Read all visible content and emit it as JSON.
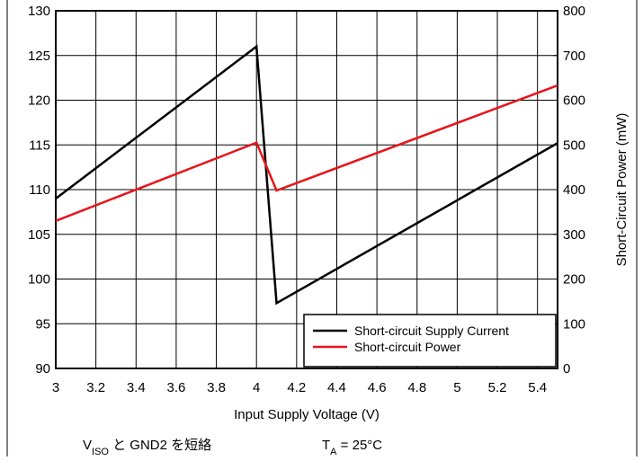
{
  "chart_data": {
    "type": "line",
    "xlabel": "Input Supply Voltage (V)",
    "y2label": "Short-Circuit Power (mW)",
    "x": [
      3,
      4,
      4.1,
      5.5
    ],
    "series": [
      {
        "name": "Short-circuit Supply Current",
        "color": "#000000",
        "values": [
          109,
          126,
          97.3,
          115.2
        ]
      },
      {
        "name": "Short-circuit Power",
        "color": "#e8141c",
        "values": [
          330,
          505,
          398,
          633
        ],
        "axis": "y2"
      }
    ],
    "xlim": [
      3,
      5.5
    ],
    "xticks": [
      3,
      3.2,
      3.4,
      3.6,
      3.8,
      4,
      4.2,
      4.4,
      4.6,
      4.8,
      5,
      5.2,
      5.4
    ],
    "ylim": [
      90,
      130
    ],
    "yticks": [
      90,
      95,
      100,
      105,
      110,
      115,
      120,
      125,
      130
    ],
    "y2lim": [
      0,
      800
    ],
    "y2ticks": [
      0,
      100,
      200,
      300,
      400,
      500,
      600,
      700,
      800
    ],
    "grid": true,
    "legend": "lower right",
    "annotations": [
      [
        "V",
        "ISO",
        " と GND2 を短絡"
      ],
      [
        "T",
        "A",
        " = 25°C"
      ]
    ]
  }
}
